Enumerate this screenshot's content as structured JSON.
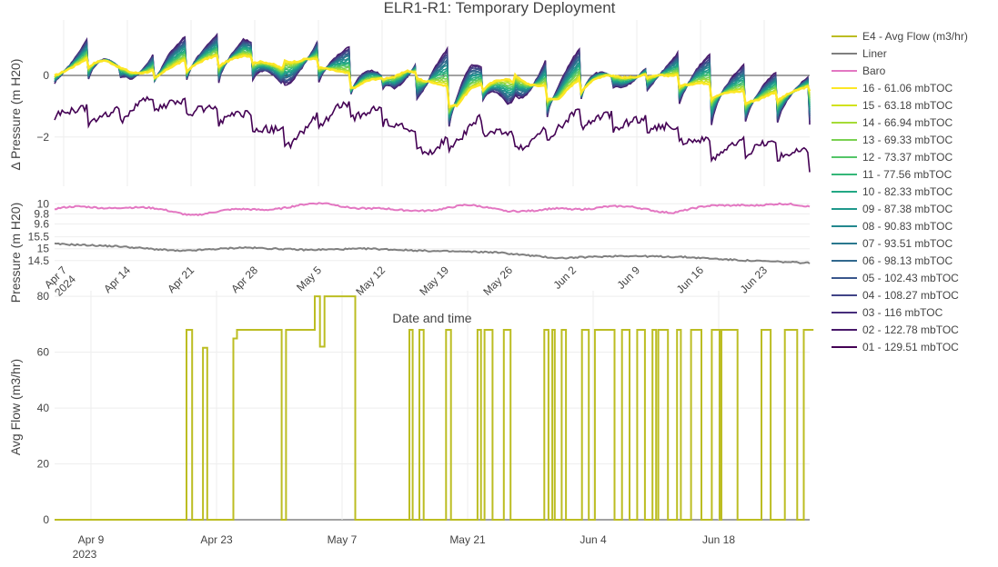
{
  "chart_data": {
    "type": "line",
    "title": "ELR1-R1: Temporary Deployment",
    "panels": {
      "delta": {
        "ylabel": "Δ Pressure (m H20)",
        "yticks": [
          "0",
          "−2"
        ],
        "ylim": [
          -3.6,
          1.8
        ]
      },
      "pressure": {
        "ylabel": "Pressure (m H20)",
        "baro_yticks": [
          "10",
          "9.8",
          "9.6"
        ],
        "baro_ylim": [
          9.5,
          10.15
        ],
        "liner_yticks": [
          "15.5",
          "15",
          "14.5"
        ],
        "liner_ylim": [
          14.3,
          15.6
        ],
        "xlabel": "Date and time",
        "xticks": [
          "Apr 7\n2024",
          "Apr 14",
          "Apr 21",
          "Apr 28",
          "May 5",
          "May 12",
          "May 19",
          "May 26",
          "Jun 2",
          "Jun 9",
          "Jun 16",
          "Jun 23"
        ]
      },
      "flow": {
        "ylabel": "Avg Flow (m3/hr)",
        "yticks": [
          "0",
          "20",
          "40",
          "60",
          "80"
        ],
        "ylim": [
          0,
          82
        ],
        "xticks": [
          "Apr 9\n2023",
          "Apr 23",
          "May 7",
          "May 21",
          "Jun 4",
          "Jun 18"
        ]
      }
    },
    "x_range": [
      "2024-04-06",
      "2024-06-27"
    ],
    "series": [
      {
        "name": "E4 - Avg Flow (m3/hr)",
        "color": "#bcbd22",
        "panel": "flow"
      },
      {
        "name": "Liner",
        "color": "#7f7f7f",
        "panel": "liner",
        "values": [
          15.2,
          15.1,
          14.9,
          15.05,
          14.95,
          15.0,
          14.9,
          14.85,
          14.6,
          14.7,
          14.65,
          14.5,
          14.4
        ]
      },
      {
        "name": "Baro",
        "color": "#e377c2",
        "panel": "baro",
        "values": [
          9.9,
          9.95,
          9.8,
          9.9,
          10.0,
          9.85,
          9.95,
          9.85,
          9.95,
          9.85,
          10.0,
          9.95
        ]
      },
      {
        "name": "16 - 61.06 mbTOC",
        "color": "#fde725",
        "panel": "delta"
      },
      {
        "name": "15 - 63.18 mbTOC",
        "color": "#d2e21b",
        "panel": "delta"
      },
      {
        "name": "14 - 66.94 mbTOC",
        "color": "#a5db36",
        "panel": "delta"
      },
      {
        "name": "13 - 69.33 mbTOC",
        "color": "#7ad151",
        "panel": "delta"
      },
      {
        "name": "12 - 73.37 mbTOC",
        "color": "#54c568",
        "panel": "delta"
      },
      {
        "name": "11 - 77.56 mbTOC",
        "color": "#35b779",
        "panel": "delta"
      },
      {
        "name": "10 - 82.33 mbTOC",
        "color": "#22a884",
        "panel": "delta"
      },
      {
        "name": "09 - 87.38 mbTOC",
        "color": "#1f988b",
        "panel": "delta"
      },
      {
        "name": "08 - 90.83 mbTOC",
        "color": "#23888e",
        "panel": "delta"
      },
      {
        "name": "07 - 93.51 mbTOC",
        "color": "#2a788e",
        "panel": "delta"
      },
      {
        "name": "06 - 98.13 mbTOC",
        "color": "#31688e",
        "panel": "delta"
      },
      {
        "name": "05 - 102.43 mbTOC",
        "color": "#39568c",
        "panel": "delta"
      },
      {
        "name": "04 - 108.27 mbTOC",
        "color": "#414487",
        "panel": "delta"
      },
      {
        "name": "03 - 116 mbTOC",
        "color": "#472d7b",
        "panel": "delta"
      },
      {
        "name": "02 - 122.78 mbTOC",
        "color": "#48186a",
        "panel": "delta"
      },
      {
        "name": "01 - 129.51 mbTOC",
        "color": "#440154",
        "panel": "delta"
      }
    ],
    "delta_envelope": {
      "top": [
        0.3,
        1.4,
        -0.2,
        1.3,
        1.4,
        1.5,
        -0.3,
        1.2,
        1.0,
        -0.5,
        1.1,
        0.9,
        -1.1,
        0.6,
        1.0,
        -0.4,
        0.6,
        1.0,
        0.5,
        0.2,
        0.0
      ],
      "bottom": [
        -0.6,
        -1.2,
        -0.3,
        -0.6,
        -1.2,
        -2.5,
        -0.7,
        -1.0,
        -3.3,
        -1.6,
        -2.8,
        -1.2,
        -1.4,
        -1.8,
        -3.1,
        -2.8,
        -3.5
      ],
      "mid": [
        0.0,
        0.4,
        -0.1,
        0.3,
        0.4,
        0.5,
        -0.5,
        0.2,
        -1.2,
        0.2,
        -1.0,
        0.0,
        -0.1,
        -0.7,
        -1.0,
        -0.5
      ]
    },
    "flow_levels": [
      0,
      68,
      80
    ]
  }
}
